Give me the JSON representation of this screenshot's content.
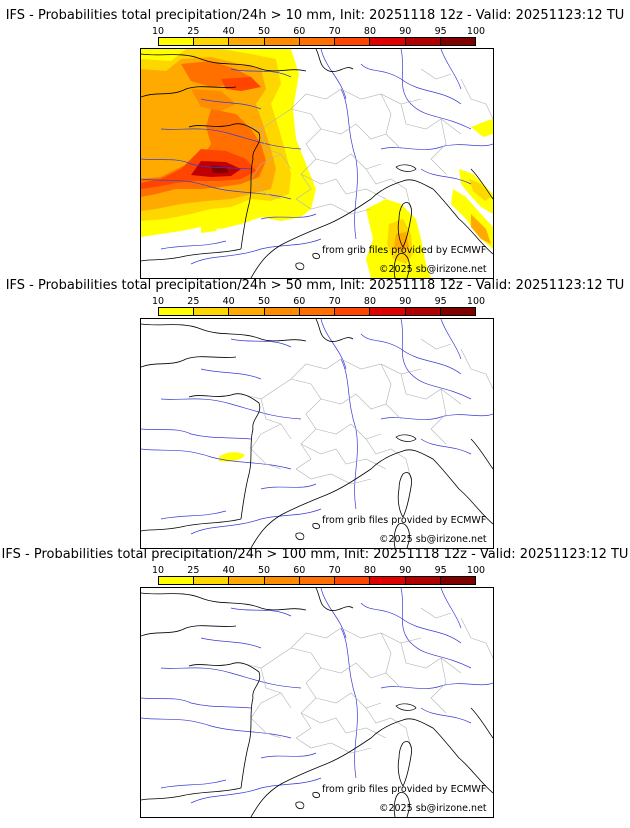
{
  "colorbar": {
    "ticks": [
      "10",
      "25",
      "40",
      "50",
      "60",
      "70",
      "80",
      "90",
      "95",
      "100"
    ],
    "colors": [
      "#ffff00",
      "#ffd700",
      "#ffaa00",
      "#ff8c00",
      "#ff7000",
      "#ff4500",
      "#e00000",
      "#b00000",
      "#800000"
    ]
  },
  "panels": [
    {
      "title": "IFS - Probabilities total precipitation/24h > 10 mm, Init: 20251118 12z - Valid: 20251123:12 TU",
      "credit_source": "from grib files provided by ECMWF",
      "credit_copyright": "©2025 sb@irizone.net"
    },
    {
      "title": "IFS - Probabilities total precipitation/24h > 50 mm, Init: 20251118 12z - Valid: 20251123:12 TU",
      "credit_source": "from grib files provided by ECMWF",
      "credit_copyright": "©2025 sb@irizone.net"
    },
    {
      "title": "IFS - Probabilities total precipitation/24h > 100 mm, Init: 20251118 12z - Valid: 20251123:12 TU",
      "credit_source": "from grib files provided by ECMWF",
      "credit_copyright": "©2025 sb@irizone.net"
    }
  ],
  "colors": {
    "coast": "#000000",
    "rivers": "#3030d0",
    "borders": "#b0b0b0"
  }
}
